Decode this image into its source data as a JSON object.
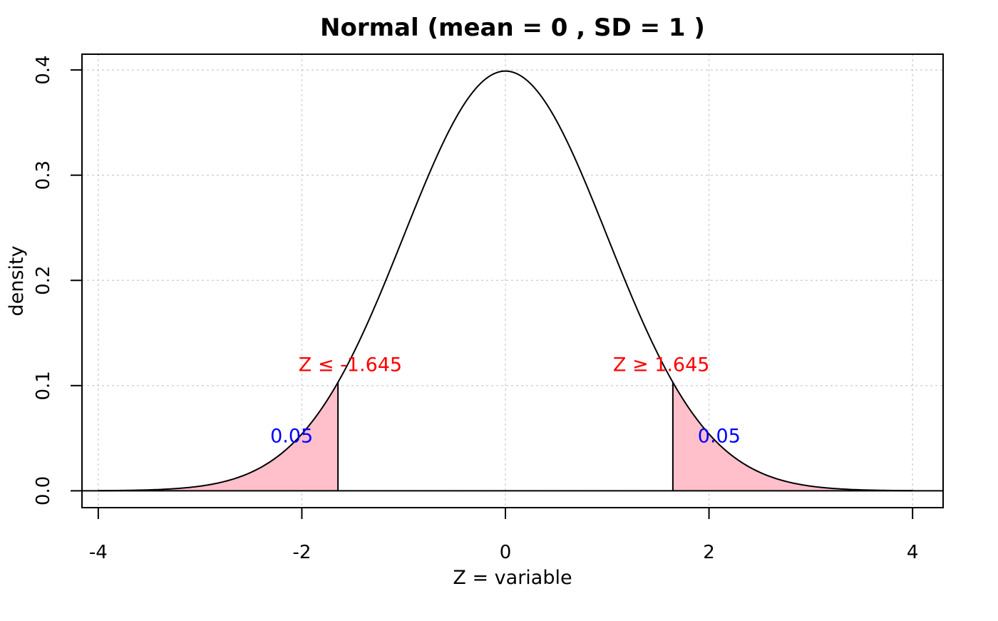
{
  "chart_data": {
    "type": "area",
    "title": "Normal (mean = 0 , SD =  1 )",
    "xlabel": "Z  = variable",
    "ylabel": "density",
    "distribution": {
      "name": "Normal",
      "mean": 0,
      "sd": 1
    },
    "xlim": [
      -4.16,
      4.3
    ],
    "ylim": [
      -0.016,
      0.415
    ],
    "x_ticks": [
      -4,
      -2,
      0,
      2,
      4
    ],
    "x_tick_labels": [
      "-4",
      "-2",
      "0",
      "2",
      "4"
    ],
    "y_ticks": [
      0.0,
      0.1,
      0.2,
      0.3,
      0.4
    ],
    "y_tick_labels": [
      "0.0",
      "0.1",
      "0.2",
      "0.3",
      "0.4"
    ],
    "grid": true,
    "critical_values": [
      -1.645,
      1.645
    ],
    "shaded_regions": [
      {
        "from": -4,
        "to": -1.645,
        "probability": 0.05,
        "label": "Z  ≤ -1.645",
        "prob_label": "0.05"
      },
      {
        "from": 1.645,
        "to": 4,
        "probability": 0.05,
        "label": "Z  ≥ 1.645",
        "prob_label": "0.05"
      }
    ],
    "colors": {
      "curve": "#000000",
      "shade": "#ffc0cb",
      "critical_label": "#ff0000",
      "probability_label": "#0000ff",
      "grid": "#d3d3d3"
    }
  }
}
